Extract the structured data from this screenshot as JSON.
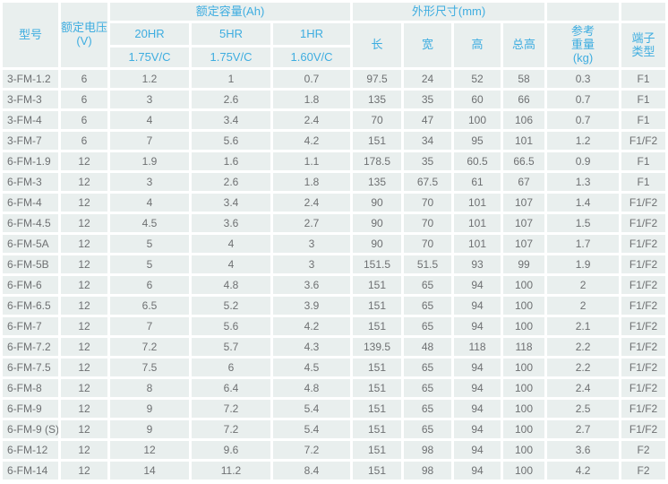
{
  "table": {
    "headers": {
      "model": "型号",
      "voltage": "额定电压\n(V)",
      "capacity_group": "额定容量(Ah)",
      "capacity_cols": [
        {
          "rate": "20HR",
          "cutoff": "1.75V/C"
        },
        {
          "rate": "5HR",
          "cutoff": "1.75V/C"
        },
        {
          "rate": "1HR",
          "cutoff": "1.60V/C"
        }
      ],
      "dimensions_group": "外形尺寸(mm)",
      "dimension_cols": [
        "长",
        "宽",
        "高",
        "总高"
      ],
      "weight": "参考\n重量\n(kg)",
      "terminal": "端子\n类型"
    },
    "column_keys": [
      "model",
      "voltage",
      "cap-20hr",
      "cap-5hr",
      "cap-1hr",
      "dim-length",
      "dim-width",
      "dim-height",
      "dim-total-height",
      "weight",
      "terminal"
    ],
    "rows": [
      [
        "3-FM-1.2",
        "6",
        "1.2",
        "1",
        "0.7",
        "97.5",
        "24",
        "52",
        "58",
        "0.3",
        "F1"
      ],
      [
        "3-FM-3",
        "6",
        "3",
        "2.6",
        "1.8",
        "135",
        "35",
        "60",
        "66",
        "0.7",
        "F1"
      ],
      [
        "3-FM-4",
        "6",
        "4",
        "3.4",
        "2.4",
        "70",
        "47",
        "100",
        "106",
        "0.7",
        "F1"
      ],
      [
        "3-FM-7",
        "6",
        "7",
        "5.6",
        "4.2",
        "151",
        "34",
        "95",
        "101",
        "1.2",
        "F1/F2"
      ],
      [
        "6-FM-1.9",
        "12",
        "1.9",
        "1.6",
        "1.1",
        "178.5",
        "35",
        "60.5",
        "66.5",
        "0.9",
        "F1"
      ],
      [
        "6-FM-3",
        "12",
        "3",
        "2.6",
        "1.8",
        "135",
        "67.5",
        "61",
        "67",
        "1.3",
        "F1"
      ],
      [
        "6-FM-4",
        "12",
        "4",
        "3.4",
        "2.4",
        "90",
        "70",
        "101",
        "107",
        "1.4",
        "F1/F2"
      ],
      [
        "6-FM-4.5",
        "12",
        "4.5",
        "3.6",
        "2.7",
        "90",
        "70",
        "101",
        "107",
        "1.5",
        "F1/F2"
      ],
      [
        "6-FM-5A",
        "12",
        "5",
        "4",
        "3",
        "90",
        "70",
        "101",
        "107",
        "1.7",
        "F1/F2"
      ],
      [
        "6-FM-5B",
        "12",
        "5",
        "4",
        "3",
        "151.5",
        "51.5",
        "93",
        "99",
        "1.9",
        "F1/F2"
      ],
      [
        "6-FM-6",
        "12",
        "6",
        "4.8",
        "3.6",
        "151",
        "65",
        "94",
        "100",
        "2",
        "F1/F2"
      ],
      [
        "6-FM-6.5",
        "12",
        "6.5",
        "5.2",
        "3.9",
        "151",
        "65",
        "94",
        "100",
        "2",
        "F1/F2"
      ],
      [
        "6-FM-7",
        "12",
        "7",
        "5.6",
        "4.2",
        "151",
        "65",
        "94",
        "100",
        "2.1",
        "F1/F2"
      ],
      [
        "6-FM-7.2",
        "12",
        "7.2",
        "5.7",
        "4.3",
        "139.5",
        "48",
        "118",
        "118",
        "2.2",
        "F1/F2"
      ],
      [
        "6-FM-7.5",
        "12",
        "7.5",
        "6",
        "4.5",
        "151",
        "65",
        "94",
        "100",
        "2.2",
        "F1/F2"
      ],
      [
        "6-FM-8",
        "12",
        "8",
        "6.4",
        "4.8",
        "151",
        "65",
        "94",
        "100",
        "2.4",
        "F1/F2"
      ],
      [
        "6-FM-9",
        "12",
        "9",
        "7.2",
        "5.4",
        "151",
        "65",
        "94",
        "100",
        "2.5",
        "F1/F2"
      ],
      [
        "6-FM-9 (S)",
        "12",
        "9",
        "7.2",
        "5.4",
        "151",
        "65",
        "94",
        "100",
        "2.7",
        "F1/F2"
      ],
      [
        "6-FM-12",
        "12",
        "12",
        "9.6",
        "7.2",
        "151",
        "98",
        "94",
        "100",
        "3.6",
        "F2"
      ],
      [
        "6-FM-14",
        "12",
        "14",
        "11.2",
        "8.4",
        "151",
        "98",
        "94",
        "100",
        "4.2",
        "F2"
      ]
    ]
  },
  "colors": {
    "header_text": "#3eade0",
    "cell_text": "#6e7072",
    "cell_background": "#e9efee",
    "gap_background": "#ffffff"
  }
}
